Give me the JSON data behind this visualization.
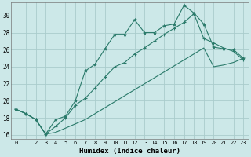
{
  "xlabel": "Humidex (Indice chaleur)",
  "bg_color": "#cce8e8",
  "grid_color": "#aacccc",
  "line_color": "#2a7a6a",
  "xlim": [
    -0.5,
    23.5
  ],
  "ylim": [
    15.5,
    31.5
  ],
  "xticks": [
    0,
    1,
    2,
    3,
    4,
    5,
    6,
    7,
    8,
    9,
    10,
    11,
    12,
    13,
    14,
    15,
    16,
    17,
    18,
    19,
    20,
    21,
    22,
    23
  ],
  "yticks": [
    16,
    18,
    20,
    22,
    24,
    26,
    28,
    30
  ],
  "series1_x": [
    0,
    1,
    2,
    3,
    4,
    5,
    6,
    7,
    8,
    9,
    10,
    11,
    12,
    13,
    14,
    15,
    16,
    17,
    18,
    19,
    20,
    21,
    22,
    23
  ],
  "series1_y": [
    19.0,
    18.5,
    17.8,
    16.1,
    17.8,
    18.2,
    20.0,
    23.5,
    24.3,
    26.1,
    27.8,
    27.8,
    29.5,
    28.0,
    28.0,
    28.8,
    29.0,
    31.2,
    30.3,
    29.0,
    26.3,
    26.1,
    26.0,
    25.0
  ],
  "series2_x": [
    0,
    1,
    2,
    3,
    4,
    5,
    6,
    7,
    8,
    9,
    10,
    11,
    12,
    13,
    14,
    15,
    16,
    17,
    18,
    19,
    20,
    21,
    22,
    23
  ],
  "series2_y": [
    19.0,
    18.5,
    17.8,
    16.1,
    17.0,
    18.0,
    19.5,
    20.3,
    21.5,
    22.8,
    24.0,
    24.5,
    25.5,
    26.2,
    27.0,
    27.8,
    28.5,
    29.2,
    30.2,
    27.3,
    26.8,
    26.2,
    25.8,
    24.8
  ],
  "series3_x": [
    0,
    1,
    2,
    3,
    4,
    5,
    6,
    7,
    8,
    9,
    10,
    11,
    12,
    13,
    14,
    15,
    16,
    17,
    18,
    19,
    20,
    21,
    22,
    23
  ],
  "series3_y": [
    19.0,
    18.5,
    17.8,
    16.1,
    16.3,
    16.8,
    17.3,
    17.8,
    18.5,
    19.2,
    19.9,
    20.6,
    21.3,
    22.0,
    22.7,
    23.4,
    24.1,
    24.8,
    25.5,
    26.2,
    24.0,
    24.2,
    24.5,
    25.0
  ]
}
